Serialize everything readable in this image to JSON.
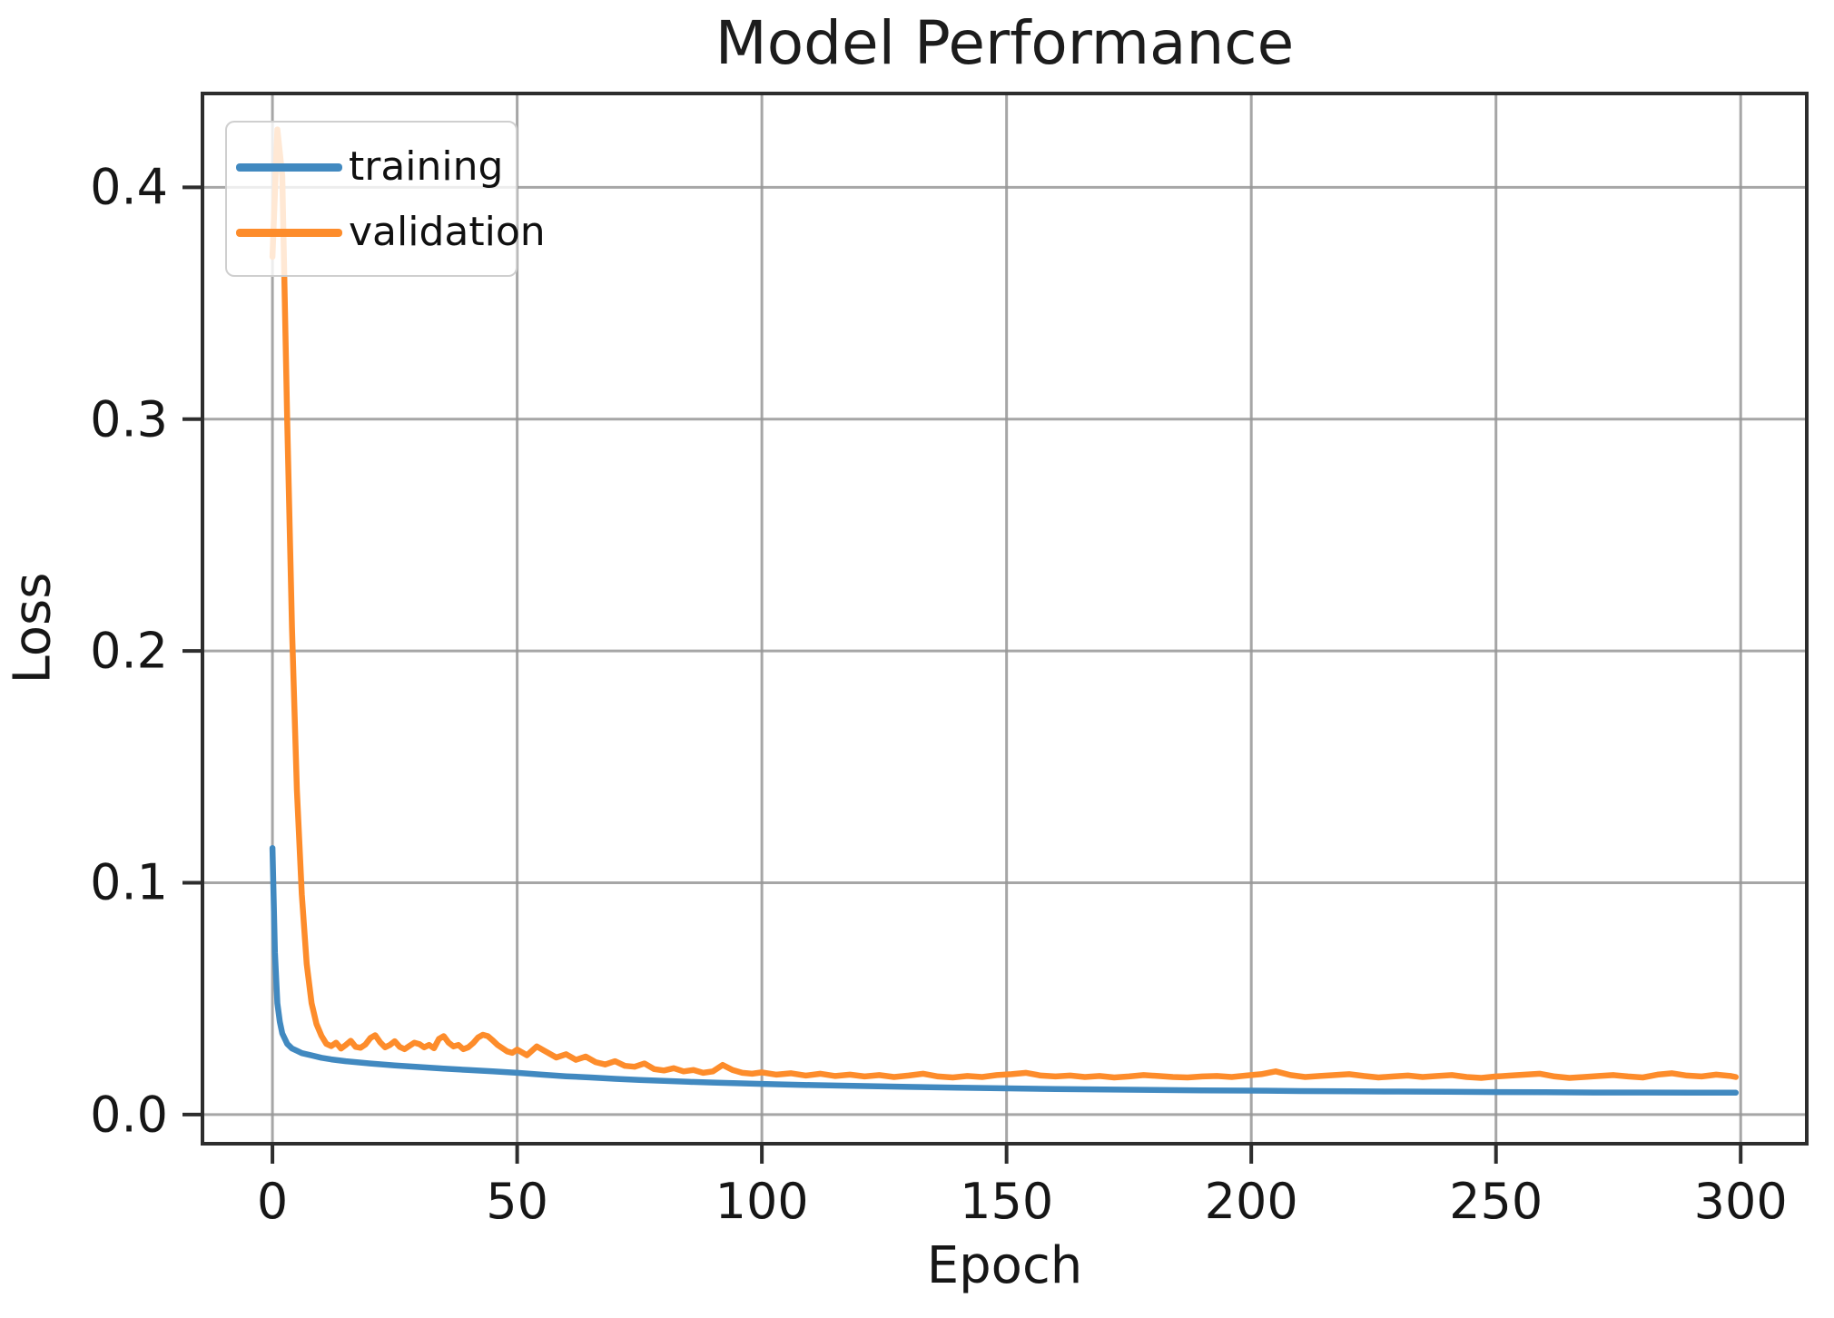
{
  "chart_data": {
    "type": "line",
    "title": "Model Performance",
    "xlabel": "Epoch",
    "ylabel": "Loss",
    "xlim": [
      -14.3,
      313.5
    ],
    "ylim": [
      -0.0126,
      0.4405
    ],
    "xticks": [
      0,
      50,
      100,
      150,
      200,
      250,
      300
    ],
    "xtick_labels": [
      "0",
      "50",
      "100",
      "150",
      "200",
      "250",
      "300"
    ],
    "yticks": [
      0.0,
      0.1,
      0.2,
      0.3,
      0.4
    ],
    "ytick_labels": [
      "0.0",
      "0.1",
      "0.2",
      "0.3",
      "0.4"
    ],
    "grid": true,
    "legend_position": "upper left",
    "grid_color": "#979797",
    "spine_color": "#2d2d2d",
    "series": [
      {
        "name": "training",
        "color": "#4189c0",
        "points": [
          [
            0,
            0.115
          ],
          [
            0.5,
            0.07
          ],
          [
            1,
            0.048
          ],
          [
            1.5,
            0.04
          ],
          [
            2,
            0.035
          ],
          [
            3,
            0.0305
          ],
          [
            4,
            0.0285
          ],
          [
            5,
            0.0275
          ],
          [
            6,
            0.0265
          ],
          [
            8,
            0.0255
          ],
          [
            10,
            0.0245
          ],
          [
            12,
            0.0238
          ],
          [
            15,
            0.023
          ],
          [
            20,
            0.022
          ],
          [
            25,
            0.0212
          ],
          [
            30,
            0.0205
          ],
          [
            35,
            0.0198
          ],
          [
            40,
            0.0192
          ],
          [
            45,
            0.0186
          ],
          [
            50,
            0.018
          ],
          [
            55,
            0.0172
          ],
          [
            60,
            0.0165
          ],
          [
            65,
            0.016
          ],
          [
            70,
            0.0154
          ],
          [
            75,
            0.0149
          ],
          [
            80,
            0.0145
          ],
          [
            85,
            0.0141
          ],
          [
            90,
            0.0138
          ],
          [
            95,
            0.0135
          ],
          [
            100,
            0.0132
          ],
          [
            110,
            0.0127
          ],
          [
            120,
            0.0123
          ],
          [
            130,
            0.0119
          ],
          [
            140,
            0.0116
          ],
          [
            150,
            0.0113
          ],
          [
            160,
            0.011
          ],
          [
            170,
            0.0108
          ],
          [
            180,
            0.0106
          ],
          [
            190,
            0.0104
          ],
          [
            200,
            0.0103
          ],
          [
            210,
            0.0101
          ],
          [
            220,
            0.01
          ],
          [
            230,
            0.0099
          ],
          [
            240,
            0.0098
          ],
          [
            250,
            0.0097
          ],
          [
            260,
            0.0096
          ],
          [
            270,
            0.0095
          ],
          [
            280,
            0.0095
          ],
          [
            290,
            0.0094
          ],
          [
            299,
            0.0094
          ]
        ]
      },
      {
        "name": "validation",
        "color": "#fd8c2b",
        "points": [
          [
            0,
            0.37
          ],
          [
            1,
            0.425
          ],
          [
            2,
            0.405
          ],
          [
            3,
            0.3
          ],
          [
            4,
            0.21
          ],
          [
            5,
            0.14
          ],
          [
            6,
            0.095
          ],
          [
            7,
            0.065
          ],
          [
            8,
            0.048
          ],
          [
            9,
            0.039
          ],
          [
            10,
            0.034
          ],
          [
            11,
            0.0305
          ],
          [
            12,
            0.0295
          ],
          [
            13,
            0.031
          ],
          [
            14,
            0.0285
          ],
          [
            15,
            0.03
          ],
          [
            16,
            0.0318
          ],
          [
            17,
            0.0292
          ],
          [
            18,
            0.0288
          ],
          [
            19,
            0.0302
          ],
          [
            20,
            0.033
          ],
          [
            21,
            0.0342
          ],
          [
            22,
            0.0312
          ],
          [
            23,
            0.029
          ],
          [
            24,
            0.03
          ],
          [
            25,
            0.0316
          ],
          [
            26,
            0.0292
          ],
          [
            27,
            0.0282
          ],
          [
            28,
            0.0296
          ],
          [
            29,
            0.031
          ],
          [
            30,
            0.0304
          ],
          [
            31,
            0.029
          ],
          [
            32,
            0.03
          ],
          [
            33,
            0.0286
          ],
          [
            34,
            0.0326
          ],
          [
            35,
            0.0338
          ],
          [
            36,
            0.031
          ],
          [
            37,
            0.0294
          ],
          [
            38,
            0.03
          ],
          [
            39,
            0.0282
          ],
          [
            40,
            0.029
          ],
          [
            41,
            0.0308
          ],
          [
            42,
            0.0332
          ],
          [
            43,
            0.0344
          ],
          [
            44,
            0.0338
          ],
          [
            45,
            0.032
          ],
          [
            46,
            0.03
          ],
          [
            47,
            0.0286
          ],
          [
            48,
            0.0272
          ],
          [
            49,
            0.0266
          ],
          [
            50,
            0.028
          ],
          [
            52,
            0.0256
          ],
          [
            54,
            0.0294
          ],
          [
            56,
            0.027
          ],
          [
            58,
            0.0246
          ],
          [
            60,
            0.026
          ],
          [
            62,
            0.0236
          ],
          [
            64,
            0.025
          ],
          [
            66,
            0.0226
          ],
          [
            68,
            0.0216
          ],
          [
            70,
            0.023
          ],
          [
            72,
            0.021
          ],
          [
            74,
            0.0206
          ],
          [
            76,
            0.022
          ],
          [
            78,
            0.0196
          ],
          [
            80,
            0.019
          ],
          [
            82,
            0.02
          ],
          [
            84,
            0.0186
          ],
          [
            86,
            0.0192
          ],
          [
            88,
            0.018
          ],
          [
            90,
            0.0186
          ],
          [
            92,
            0.0214
          ],
          [
            94,
            0.0192
          ],
          [
            96,
            0.018
          ],
          [
            98,
            0.0176
          ],
          [
            100,
            0.0182
          ],
          [
            103,
            0.0172
          ],
          [
            106,
            0.0178
          ],
          [
            109,
            0.0168
          ],
          [
            112,
            0.0176
          ],
          [
            115,
            0.0166
          ],
          [
            118,
            0.0172
          ],
          [
            121,
            0.0164
          ],
          [
            124,
            0.017
          ],
          [
            127,
            0.0162
          ],
          [
            130,
            0.0168
          ],
          [
            133,
            0.0176
          ],
          [
            136,
            0.0164
          ],
          [
            139,
            0.016
          ],
          [
            142,
            0.0166
          ],
          [
            145,
            0.0162
          ],
          [
            148,
            0.017
          ],
          [
            151,
            0.0174
          ],
          [
            154,
            0.018
          ],
          [
            157,
            0.0168
          ],
          [
            160,
            0.0164
          ],
          [
            163,
            0.0168
          ],
          [
            166,
            0.0162
          ],
          [
            169,
            0.0166
          ],
          [
            172,
            0.016
          ],
          [
            175,
            0.0164
          ],
          [
            178,
            0.017
          ],
          [
            181,
            0.0166
          ],
          [
            184,
            0.0162
          ],
          [
            187,
            0.016
          ],
          [
            190,
            0.0164
          ],
          [
            193,
            0.0166
          ],
          [
            196,
            0.0162
          ],
          [
            199,
            0.0168
          ],
          [
            202,
            0.0174
          ],
          [
            205,
            0.0186
          ],
          [
            208,
            0.017
          ],
          [
            211,
            0.0162
          ],
          [
            214,
            0.0166
          ],
          [
            217,
            0.017
          ],
          [
            220,
            0.0174
          ],
          [
            223,
            0.0166
          ],
          [
            226,
            0.016
          ],
          [
            229,
            0.0164
          ],
          [
            232,
            0.0168
          ],
          [
            235,
            0.0162
          ],
          [
            238,
            0.0166
          ],
          [
            241,
            0.017
          ],
          [
            244,
            0.0162
          ],
          [
            247,
            0.0158
          ],
          [
            250,
            0.0164
          ],
          [
            253,
            0.0168
          ],
          [
            256,
            0.0172
          ],
          [
            259,
            0.0176
          ],
          [
            262,
            0.0164
          ],
          [
            265,
            0.0158
          ],
          [
            268,
            0.0162
          ],
          [
            271,
            0.0166
          ],
          [
            274,
            0.017
          ],
          [
            277,
            0.0164
          ],
          [
            280,
            0.016
          ],
          [
            283,
            0.0172
          ],
          [
            286,
            0.0178
          ],
          [
            289,
            0.0168
          ],
          [
            292,
            0.0164
          ],
          [
            295,
            0.0172
          ],
          [
            298,
            0.0166
          ],
          [
            299,
            0.0162
          ]
        ]
      }
    ]
  }
}
